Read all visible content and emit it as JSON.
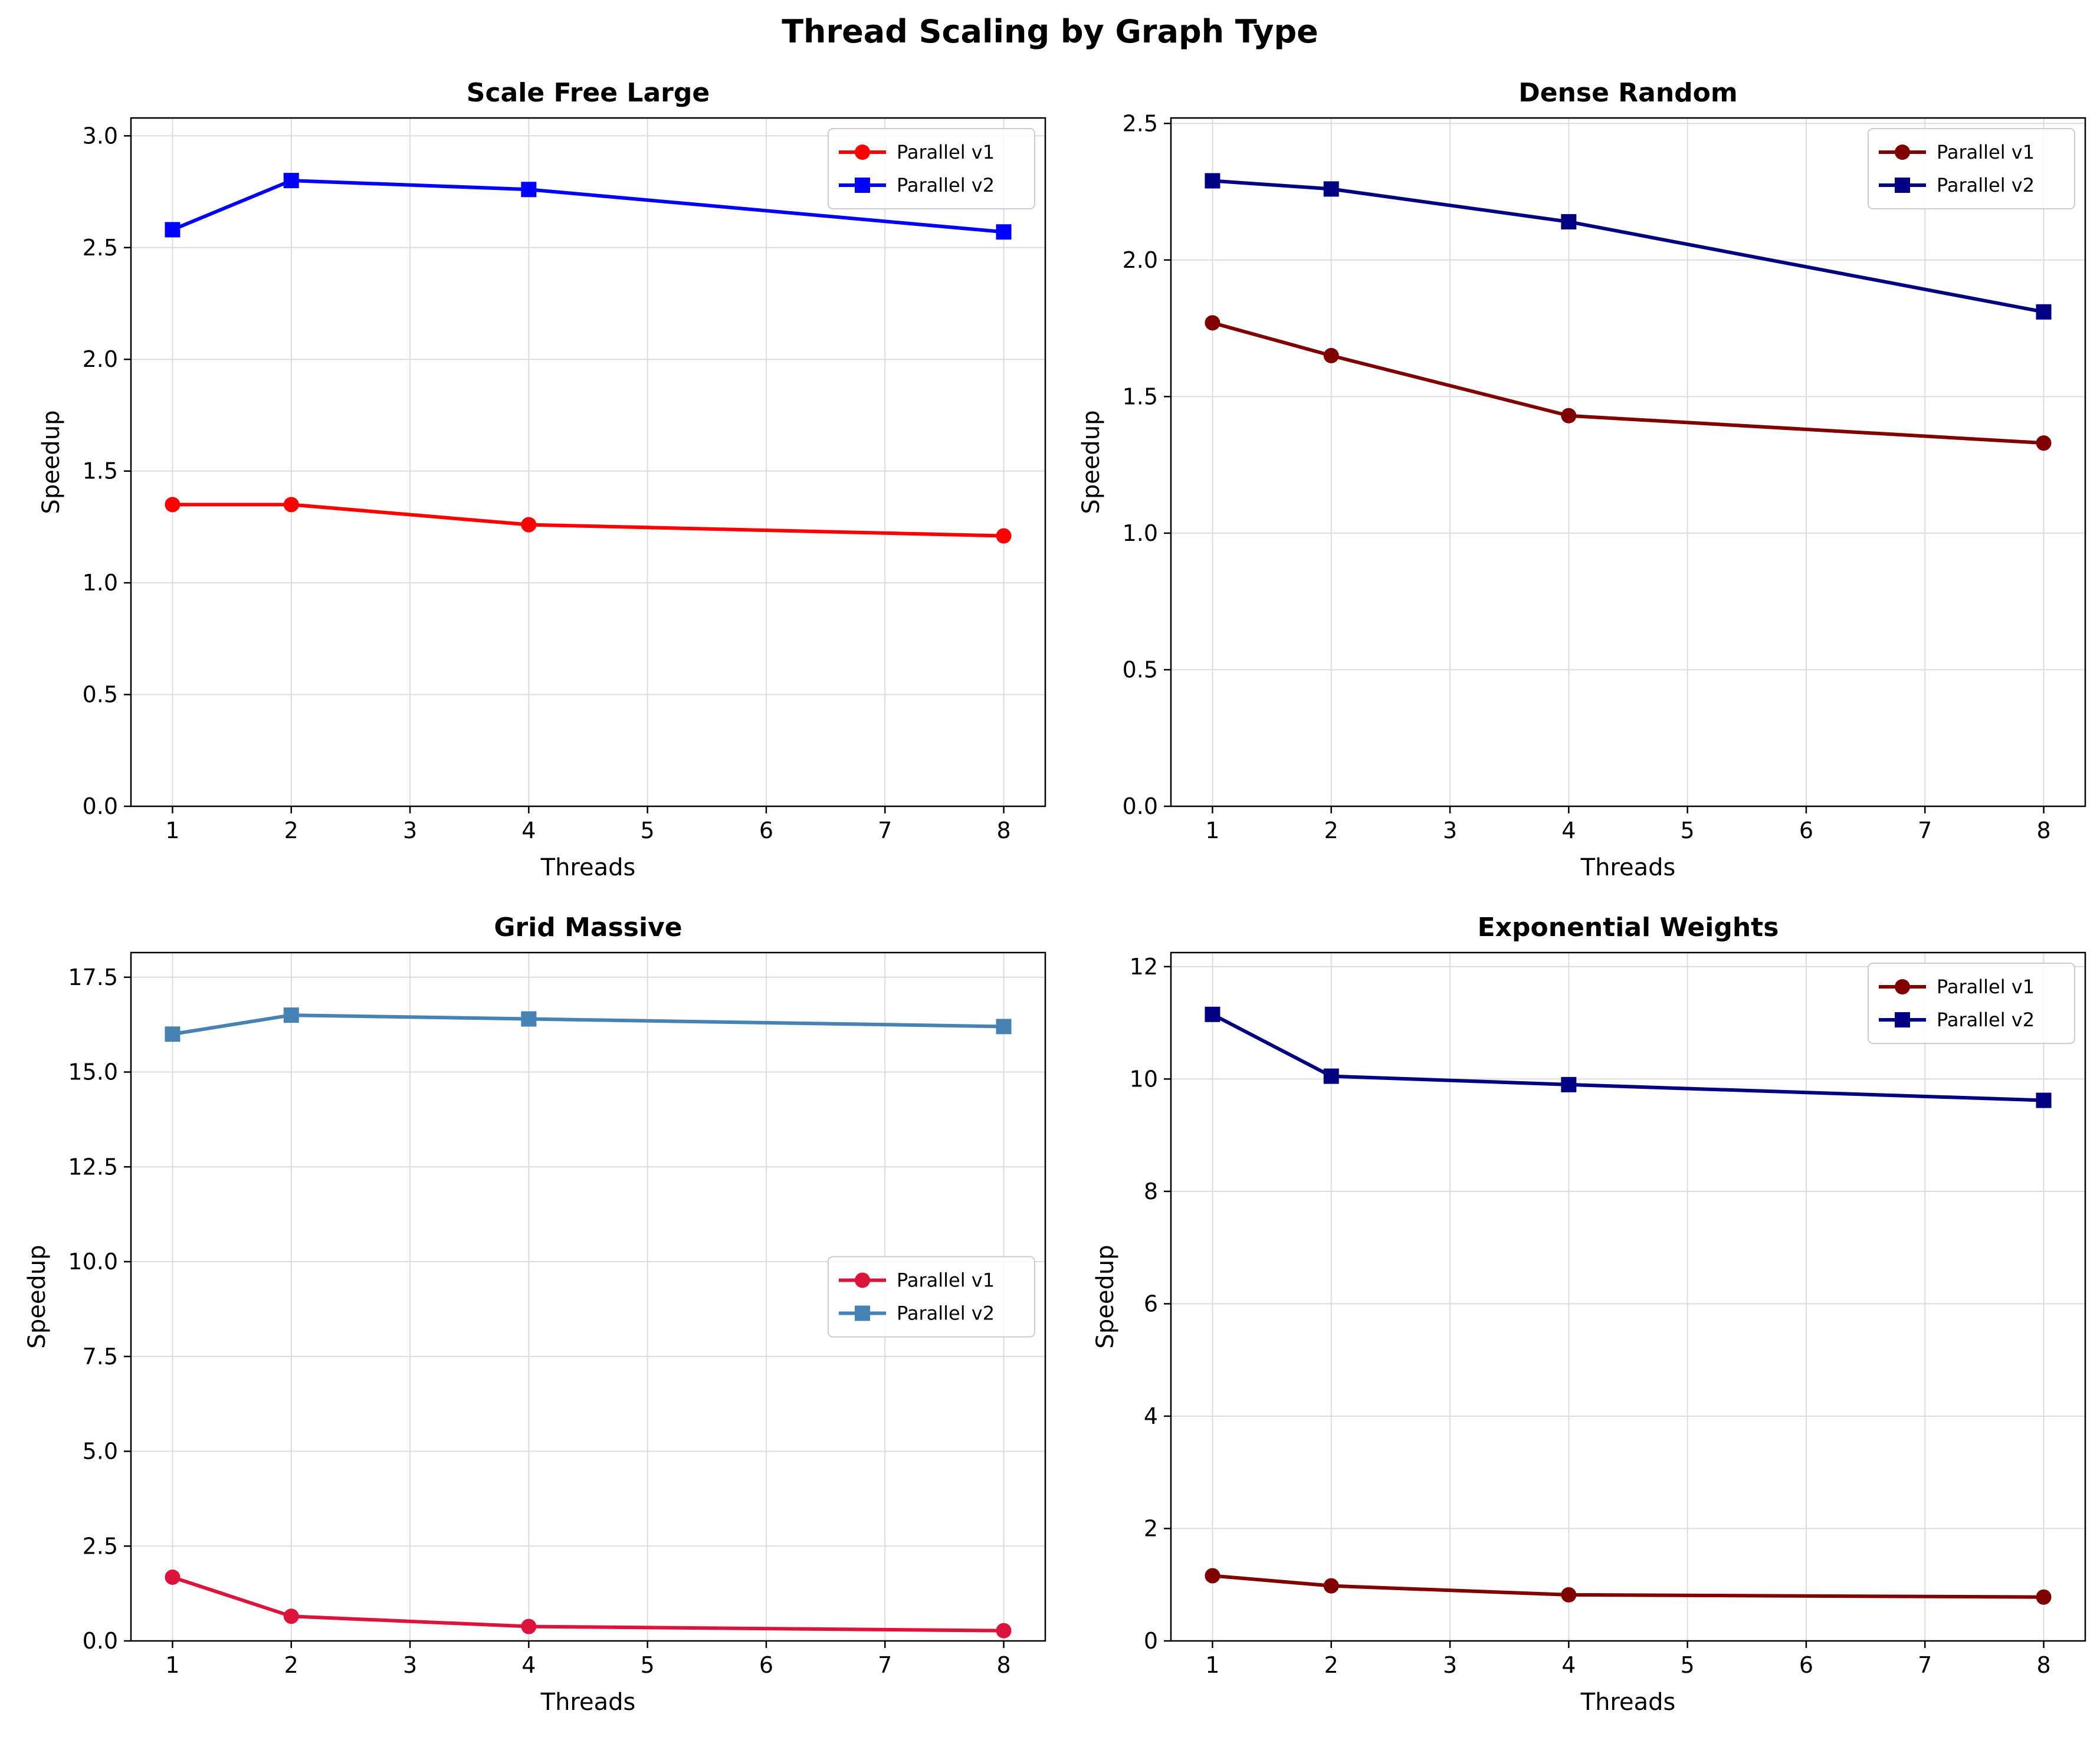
{
  "figure": {
    "title": "Thread Scaling by Graph Type"
  },
  "chart_data": [
    {
      "type": "line",
      "title": "Scale Free Large",
      "xlabel": "Threads",
      "ylabel": "Speedup",
      "xlim": [
        0.65,
        8.35
      ],
      "ylim": [
        0,
        3.08
      ],
      "xticks": [
        1,
        2,
        3,
        4,
        5,
        6,
        7,
        8
      ],
      "xtick_labels": [
        "1",
        "2",
        "3",
        "4",
        "5",
        "6",
        "7",
        "8"
      ],
      "yticks": [
        0.0,
        0.5,
        1.0,
        1.5,
        2.0,
        2.5,
        3.0
      ],
      "ytick_labels": [
        "0.0",
        "0.5",
        "1.0",
        "1.5",
        "2.0",
        "2.5",
        "3.0"
      ],
      "grid": true,
      "legend_position": "upper-right",
      "x": [
        1,
        2,
        4,
        8
      ],
      "series": [
        {
          "name": "Parallel v1",
          "marker": "circle",
          "color": "#ff0000",
          "values": [
            1.35,
            1.35,
            1.26,
            1.21
          ]
        },
        {
          "name": "Parallel v2",
          "marker": "square",
          "color": "#0000ff",
          "values": [
            2.58,
            2.8,
            2.76,
            2.57
          ]
        }
      ]
    },
    {
      "type": "line",
      "title": "Dense Random",
      "xlabel": "Threads",
      "ylabel": "Speedup",
      "xlim": [
        0.65,
        8.35
      ],
      "ylim": [
        0,
        2.52
      ],
      "xticks": [
        1,
        2,
        3,
        4,
        5,
        6,
        7,
        8
      ],
      "xtick_labels": [
        "1",
        "2",
        "3",
        "4",
        "5",
        "6",
        "7",
        "8"
      ],
      "yticks": [
        0.0,
        0.5,
        1.0,
        1.5,
        2.0,
        2.5
      ],
      "ytick_labels": [
        "0.0",
        "0.5",
        "1.0",
        "1.5",
        "2.0",
        "2.5"
      ],
      "grid": true,
      "legend_position": "upper-right",
      "x": [
        1,
        2,
        4,
        8
      ],
      "series": [
        {
          "name": "Parallel v1",
          "marker": "circle",
          "color": "#800000",
          "values": [
            1.77,
            1.65,
            1.43,
            1.33
          ]
        },
        {
          "name": "Parallel v2",
          "marker": "square",
          "color": "#000080",
          "values": [
            2.29,
            2.26,
            2.14,
            1.81
          ]
        }
      ]
    },
    {
      "type": "line",
      "title": "Grid Massive",
      "xlabel": "Threads",
      "ylabel": "Speedup",
      "xlim": [
        0.65,
        8.35
      ],
      "ylim": [
        0,
        18.15
      ],
      "xticks": [
        1,
        2,
        3,
        4,
        5,
        6,
        7,
        8
      ],
      "xtick_labels": [
        "1",
        "2",
        "3",
        "4",
        "5",
        "6",
        "7",
        "8"
      ],
      "yticks": [
        0.0,
        2.5,
        5.0,
        7.5,
        10.0,
        12.5,
        15.0,
        17.5
      ],
      "ytick_labels": [
        "0.0",
        "2.5",
        "5.0",
        "7.5",
        "10.0",
        "12.5",
        "15.0",
        "17.5"
      ],
      "grid": true,
      "legend_position": "center-right",
      "x": [
        1,
        2,
        4,
        8
      ],
      "series": [
        {
          "name": "Parallel v1",
          "marker": "circle",
          "color": "#dc143c",
          "values": [
            1.68,
            0.65,
            0.38,
            0.27
          ]
        },
        {
          "name": "Parallel v2",
          "marker": "square",
          "color": "#4682b4",
          "values": [
            16.0,
            16.5,
            16.4,
            16.2
          ]
        }
      ]
    },
    {
      "type": "line",
      "title": "Exponential Weights",
      "xlabel": "Threads",
      "ylabel": "Speedup",
      "xlim": [
        0.65,
        8.35
      ],
      "ylim": [
        0,
        12.25
      ],
      "xticks": [
        1,
        2,
        3,
        4,
        5,
        6,
        7,
        8
      ],
      "xtick_labels": [
        "1",
        "2",
        "3",
        "4",
        "5",
        "6",
        "7",
        "8"
      ],
      "yticks": [
        0,
        2,
        4,
        6,
        8,
        10,
        12
      ],
      "ytick_labels": [
        "0",
        "2",
        "4",
        "6",
        "8",
        "10",
        "12"
      ],
      "grid": true,
      "legend_position": "upper-right",
      "x": [
        1,
        2,
        4,
        8
      ],
      "series": [
        {
          "name": "Parallel v1",
          "marker": "circle",
          "color": "#800000",
          "values": [
            1.16,
            0.98,
            0.82,
            0.78
          ]
        },
        {
          "name": "Parallel v2",
          "marker": "square",
          "color": "#000080",
          "values": [
            11.15,
            10.05,
            9.9,
            9.62
          ]
        }
      ]
    }
  ]
}
